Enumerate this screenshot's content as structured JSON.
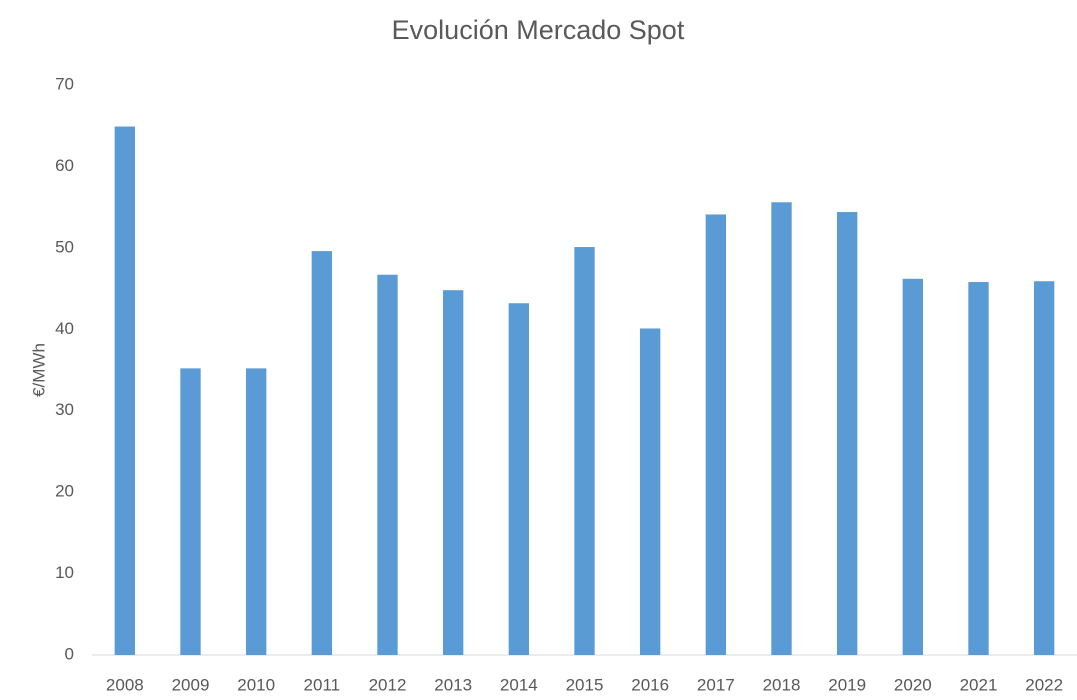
{
  "chart_data": {
    "type": "bar",
    "title": "Evolución Mercado Spot",
    "y_label": "€/MWh",
    "categories": [
      "2008",
      "2009",
      "2010",
      "2011",
      "2012",
      "2013",
      "2014",
      "2015",
      "2016",
      "2017",
      "2018",
      "2019",
      "2020",
      "2021",
      "2022"
    ],
    "values": [
      64.9,
      35.2,
      35.2,
      49.6,
      46.7,
      44.8,
      43.2,
      50.1,
      40.1,
      54.1,
      55.6,
      54.4,
      46.2,
      45.8,
      45.9
    ],
    "color": "#5b9bd5",
    "ylim": [
      0,
      70
    ],
    "yticks": [
      0,
      10,
      20,
      30,
      40,
      50,
      60,
      70
    ],
    "grid": false
  }
}
